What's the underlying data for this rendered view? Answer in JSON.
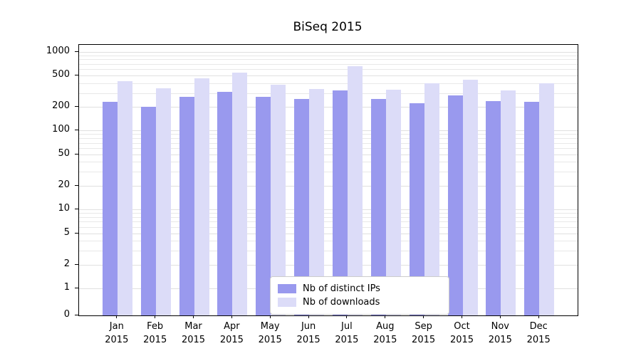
{
  "chart_data": {
    "type": "bar",
    "title": "BiSeq 2015",
    "scale": "symlog",
    "xlabel": "",
    "ylabel": "",
    "ylim": [
      0,
      1200
    ],
    "grid": true,
    "legend_position": "lower center",
    "yticks": [
      1000,
      500,
      200,
      100,
      50,
      20,
      10,
      5,
      2,
      1,
      0
    ],
    "categories": [
      "Jan",
      "Feb",
      "Mar",
      "Apr",
      "May",
      "Jun",
      "Jul",
      "Aug",
      "Sep",
      "Oct",
      "Nov",
      "Dec"
    ],
    "year_label": "2015",
    "series": [
      {
        "name": "Nb of distinct IPs",
        "color": "#9999ee",
        "values": [
          230,
          200,
          270,
          310,
          270,
          250,
          320,
          250,
          220,
          280,
          235,
          230
        ]
      },
      {
        "name": "Nb of downloads",
        "color": "#dcdcf8",
        "values": [
          420,
          340,
          460,
          540,
          380,
          335,
          650,
          330,
          400,
          440,
          320,
          395
        ]
      }
    ]
  }
}
